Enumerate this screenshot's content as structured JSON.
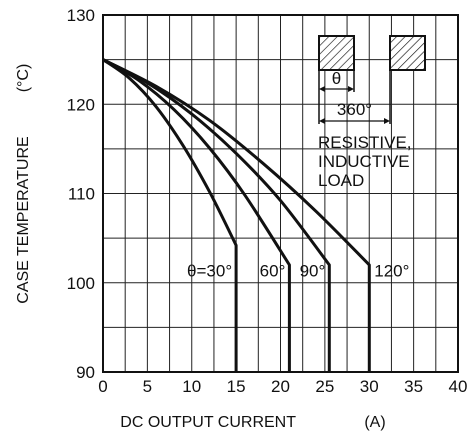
{
  "chart_data": {
    "type": "line",
    "xlabel": "DC OUTPUT CURRENT",
    "xunit": "(A)",
    "ylabel": "CASE TEMPERATURE",
    "yunit": "(°C)",
    "xlim": [
      0,
      40
    ],
    "ylim": [
      90,
      130
    ],
    "x_ticks": [
      0,
      5,
      10,
      15,
      20,
      25,
      30,
      35,
      40
    ],
    "y_ticks": [
      90,
      100,
      110,
      120,
      130
    ],
    "x_tick_labels": [
      "0",
      "5",
      "10",
      "15",
      "20",
      "25",
      "30",
      "35",
      "40"
    ],
    "y_tick_labels": [
      "90",
      "100",
      "110",
      "120",
      "130"
    ],
    "grid": true,
    "series": [
      {
        "name": "θ=30°",
        "x": [
          0,
          3,
          6,
          9,
          12,
          15,
          15
        ],
        "y": [
          125,
          122.9,
          119.7,
          115.4,
          110.2,
          104.2,
          90
        ]
      },
      {
        "name": "60°",
        "x": [
          0,
          4,
          8,
          12,
          16,
          21,
          21
        ],
        "y": [
          125,
          122.7,
          119.4,
          115.1,
          109.8,
          102.0,
          90
        ]
      },
      {
        "name": "90°",
        "x": [
          0,
          5,
          10,
          15,
          20,
          25.5,
          25.5
        ],
        "y": [
          125,
          122.4,
          118.9,
          114.5,
          109.2,
          102.0,
          90
        ]
      },
      {
        "name": "120°",
        "x": [
          0,
          6,
          12,
          18,
          24,
          30,
          30
        ],
        "y": [
          125,
          122.0,
          118.2,
          113.4,
          108.0,
          102.0,
          90
        ]
      }
    ],
    "annotations": {
      "theta_label": "θ",
      "period_label": "360°",
      "load_lines": [
        "RESISTIVE,",
        "INDUCTIVE",
        "LOAD"
      ]
    }
  }
}
